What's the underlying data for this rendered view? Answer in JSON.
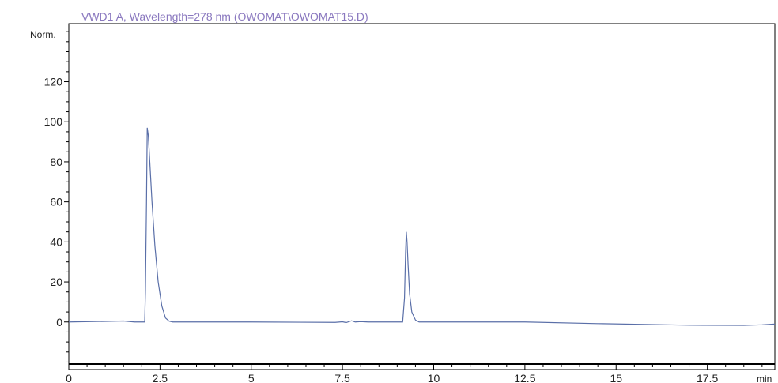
{
  "chart_data": {
    "type": "line",
    "title": "VWD1 A, Wavelength=278 nm (OWOMAT\\OWOMAT15.D)",
    "ylabel": "Norm.",
    "xlabel": "min",
    "x_unit_label": "min",
    "xlim": [
      0,
      19.35
    ],
    "ylim": [
      -21,
      149
    ],
    "x_ticks": [
      0,
      2.5,
      5,
      7.5,
      10,
      12.5,
      15,
      17.5
    ],
    "x_tick_labels": [
      "0",
      "2.5",
      "5",
      "7.5",
      "10",
      "12.5",
      "15",
      "17.5"
    ],
    "y_ticks": [
      0,
      20,
      40,
      60,
      80,
      100,
      120
    ],
    "y_tick_labels": [
      "0",
      "20",
      "40",
      "60",
      "80",
      "100",
      "120"
    ],
    "grid": false,
    "colors": {
      "trace": "#5a6fa8",
      "title": "#8a78bf",
      "axis": "#000000"
    },
    "series": [
      {
        "points": [
          [
            0,
            0
          ],
          [
            1.0,
            0.3
          ],
          [
            1.5,
            0.5
          ],
          [
            1.8,
            0.0
          ],
          [
            2.08,
            0.0
          ],
          [
            2.1,
            15
          ],
          [
            2.13,
            60
          ],
          [
            2.15,
            97
          ],
          [
            2.18,
            93
          ],
          [
            2.22,
            80
          ],
          [
            2.28,
            60
          ],
          [
            2.36,
            38
          ],
          [
            2.45,
            20
          ],
          [
            2.55,
            8
          ],
          [
            2.65,
            2
          ],
          [
            2.75,
            0.4
          ],
          [
            2.85,
            0.0
          ],
          [
            3.5,
            0.0
          ],
          [
            5,
            0.0
          ],
          [
            7.3,
            -0.2
          ],
          [
            7.5,
            0.1
          ],
          [
            7.6,
            -0.3
          ],
          [
            7.75,
            0.6
          ],
          [
            7.85,
            0.0
          ],
          [
            8.0,
            0.2
          ],
          [
            8.2,
            0.0
          ],
          [
            9.15,
            0.0
          ],
          [
            9.2,
            12
          ],
          [
            9.23,
            35
          ],
          [
            9.25,
            45
          ],
          [
            9.27,
            40
          ],
          [
            9.3,
            28
          ],
          [
            9.34,
            14
          ],
          [
            9.4,
            5
          ],
          [
            9.5,
            1
          ],
          [
            9.6,
            0.0
          ],
          [
            12.5,
            0.0
          ],
          [
            14.5,
            -0.8
          ],
          [
            17.0,
            -1.6
          ],
          [
            18.5,
            -1.7
          ],
          [
            19.0,
            -1.4
          ],
          [
            19.35,
            -1.0
          ]
        ]
      }
    ]
  }
}
